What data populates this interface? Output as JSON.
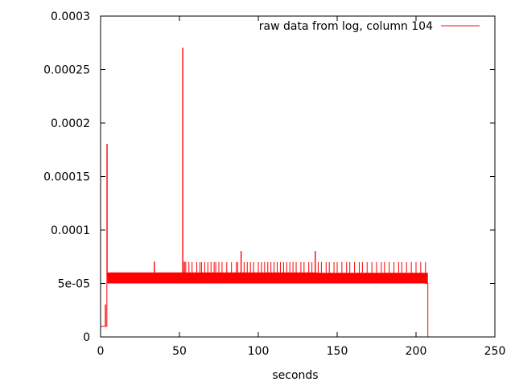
{
  "chart_data": {
    "type": "line",
    "title": "",
    "xlabel": "seconds",
    "ylabel": "",
    "xlim": [
      0,
      250
    ],
    "ylim": [
      0,
      0.0003
    ],
    "xticks": [
      {
        "value": 0,
        "label": "0"
      },
      {
        "value": 50,
        "label": "50"
      },
      {
        "value": 100,
        "label": "100"
      },
      {
        "value": 150,
        "label": "150"
      },
      {
        "value": 200,
        "label": "200"
      },
      {
        "value": 250,
        "label": "250"
      }
    ],
    "yticks": [
      {
        "value": 0,
        "label": "0"
      },
      {
        "value": 5e-05,
        "label": "5e-05"
      },
      {
        "value": 0.0001,
        "label": "0.0001"
      },
      {
        "value": 0.00015,
        "label": "0.00015"
      },
      {
        "value": 0.0002,
        "label": "0.0002"
      },
      {
        "value": 0.00025,
        "label": "0.00025"
      },
      {
        "value": 0.0003,
        "label": "0.0003"
      }
    ],
    "grid": false,
    "legend_position": "top-right",
    "series": [
      {
        "name": "raw data from log, column 104",
        "color": "#ff0000",
        "x": [
          0,
          3,
          3,
          3.2,
          3.2,
          4,
          4,
          4.2,
          4.2,
          5,
          5,
          34,
          34,
          34.2,
          34.2,
          52,
          52,
          52.2,
          52.2,
          53,
          53,
          53.2,
          53.2,
          89,
          89,
          89.2,
          89.2,
          136,
          136,
          136.2,
          136.2,
          207.5,
          207.5,
          208
        ],
        "y": [
          1e-05,
          1e-05,
          3e-05,
          3e-05,
          1e-05,
          1e-05,
          0.00018,
          0.00018,
          6e-05,
          5e-05,
          6e-05,
          6e-05,
          7e-05,
          7e-05,
          6e-05,
          6e-05,
          0.00027,
          0.00027,
          6e-05,
          6e-05,
          7e-05,
          7e-05,
          6e-05,
          6e-05,
          8e-05,
          8e-05,
          6e-05,
          6e-05,
          8e-05,
          8e-05,
          6e-05,
          5e-05,
          0.0,
          0.0
        ]
      }
    ],
    "noise_band": {
      "x_start": 4.3,
      "x_end": 207.5,
      "y_low": 5e-05,
      "y_high": 6e-05
    },
    "spikes_to_7e-05": [
      54,
      56,
      58,
      61,
      63,
      64,
      66,
      68,
      70,
      72,
      73,
      75,
      77,
      80,
      83,
      86,
      87,
      91,
      93,
      95,
      97,
      100,
      102,
      104,
      106,
      108,
      110,
      112,
      114,
      116,
      118,
      120,
      122,
      124,
      127,
      129,
      132,
      134,
      138,
      140,
      143,
      145,
      148,
      150,
      153,
      156,
      158,
      161,
      164,
      166,
      169,
      172,
      175,
      178,
      180,
      183,
      186,
      189,
      191,
      194,
      197,
      200,
      203,
      206
    ]
  }
}
